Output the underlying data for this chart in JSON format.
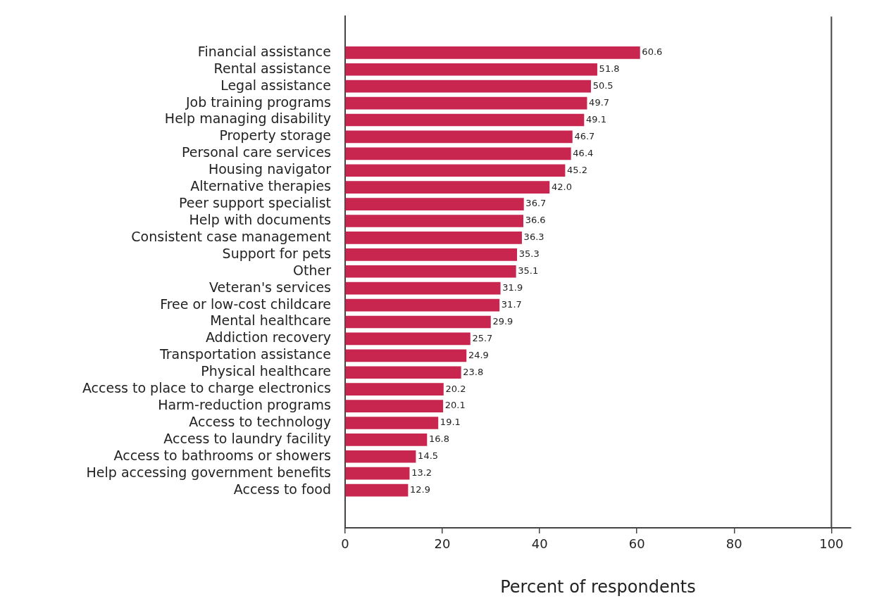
{
  "chart_data": {
    "type": "bar",
    "orientation": "horizontal",
    "xlabel": "Percent of respondents",
    "categories": [
      "Financial assistance",
      "Rental assistance",
      "Legal assistance",
      "Job training programs",
      "Help managing disability",
      "Property storage",
      "Personal care services",
      "Housing navigator",
      "Alternative therapies",
      "Peer support specialist",
      "Help with documents",
      "Consistent case management",
      "Support for pets",
      "Other",
      "Veteran's services",
      "Free or low-cost childcare",
      "Mental healthcare",
      "Addiction recovery",
      "Transportation assistance",
      "Physical healthcare",
      "Access to place to charge electronics",
      "Harm-reduction programs",
      "Access to technology",
      "Access to laundry facility",
      "Access to bathrooms or showers",
      "Help accessing government benefits",
      "Access to food"
    ],
    "values": [
      60.6,
      51.8,
      50.5,
      49.7,
      49.1,
      46.7,
      46.4,
      45.2,
      42.0,
      36.7,
      36.6,
      36.3,
      35.3,
      35.1,
      31.9,
      31.7,
      29.9,
      25.7,
      24.9,
      23.8,
      20.2,
      20.1,
      19.1,
      16.8,
      14.5,
      13.2,
      12.9
    ],
    "value_labels": [
      "60.6",
      "51.8",
      "50.5",
      "49.7",
      "49.1",
      "46.7",
      "46.4",
      "45.2",
      "42.0",
      "36.7",
      "36.6",
      "36.3",
      "35.3",
      "35.1",
      "31.9",
      "31.7",
      "29.9",
      "25.7",
      "24.9",
      "23.8",
      "20.2",
      "20.1",
      "19.1",
      "16.8",
      "14.5",
      "13.2",
      "12.9"
    ],
    "color": "#c8254f",
    "xlim": [
      0,
      104
    ],
    "xticks": [
      0,
      20,
      40,
      60,
      80,
      100
    ],
    "grid": false,
    "legend": false,
    "ref_lines": [
      {
        "axis": "x",
        "value": 100,
        "color": "#444444"
      }
    ]
  }
}
